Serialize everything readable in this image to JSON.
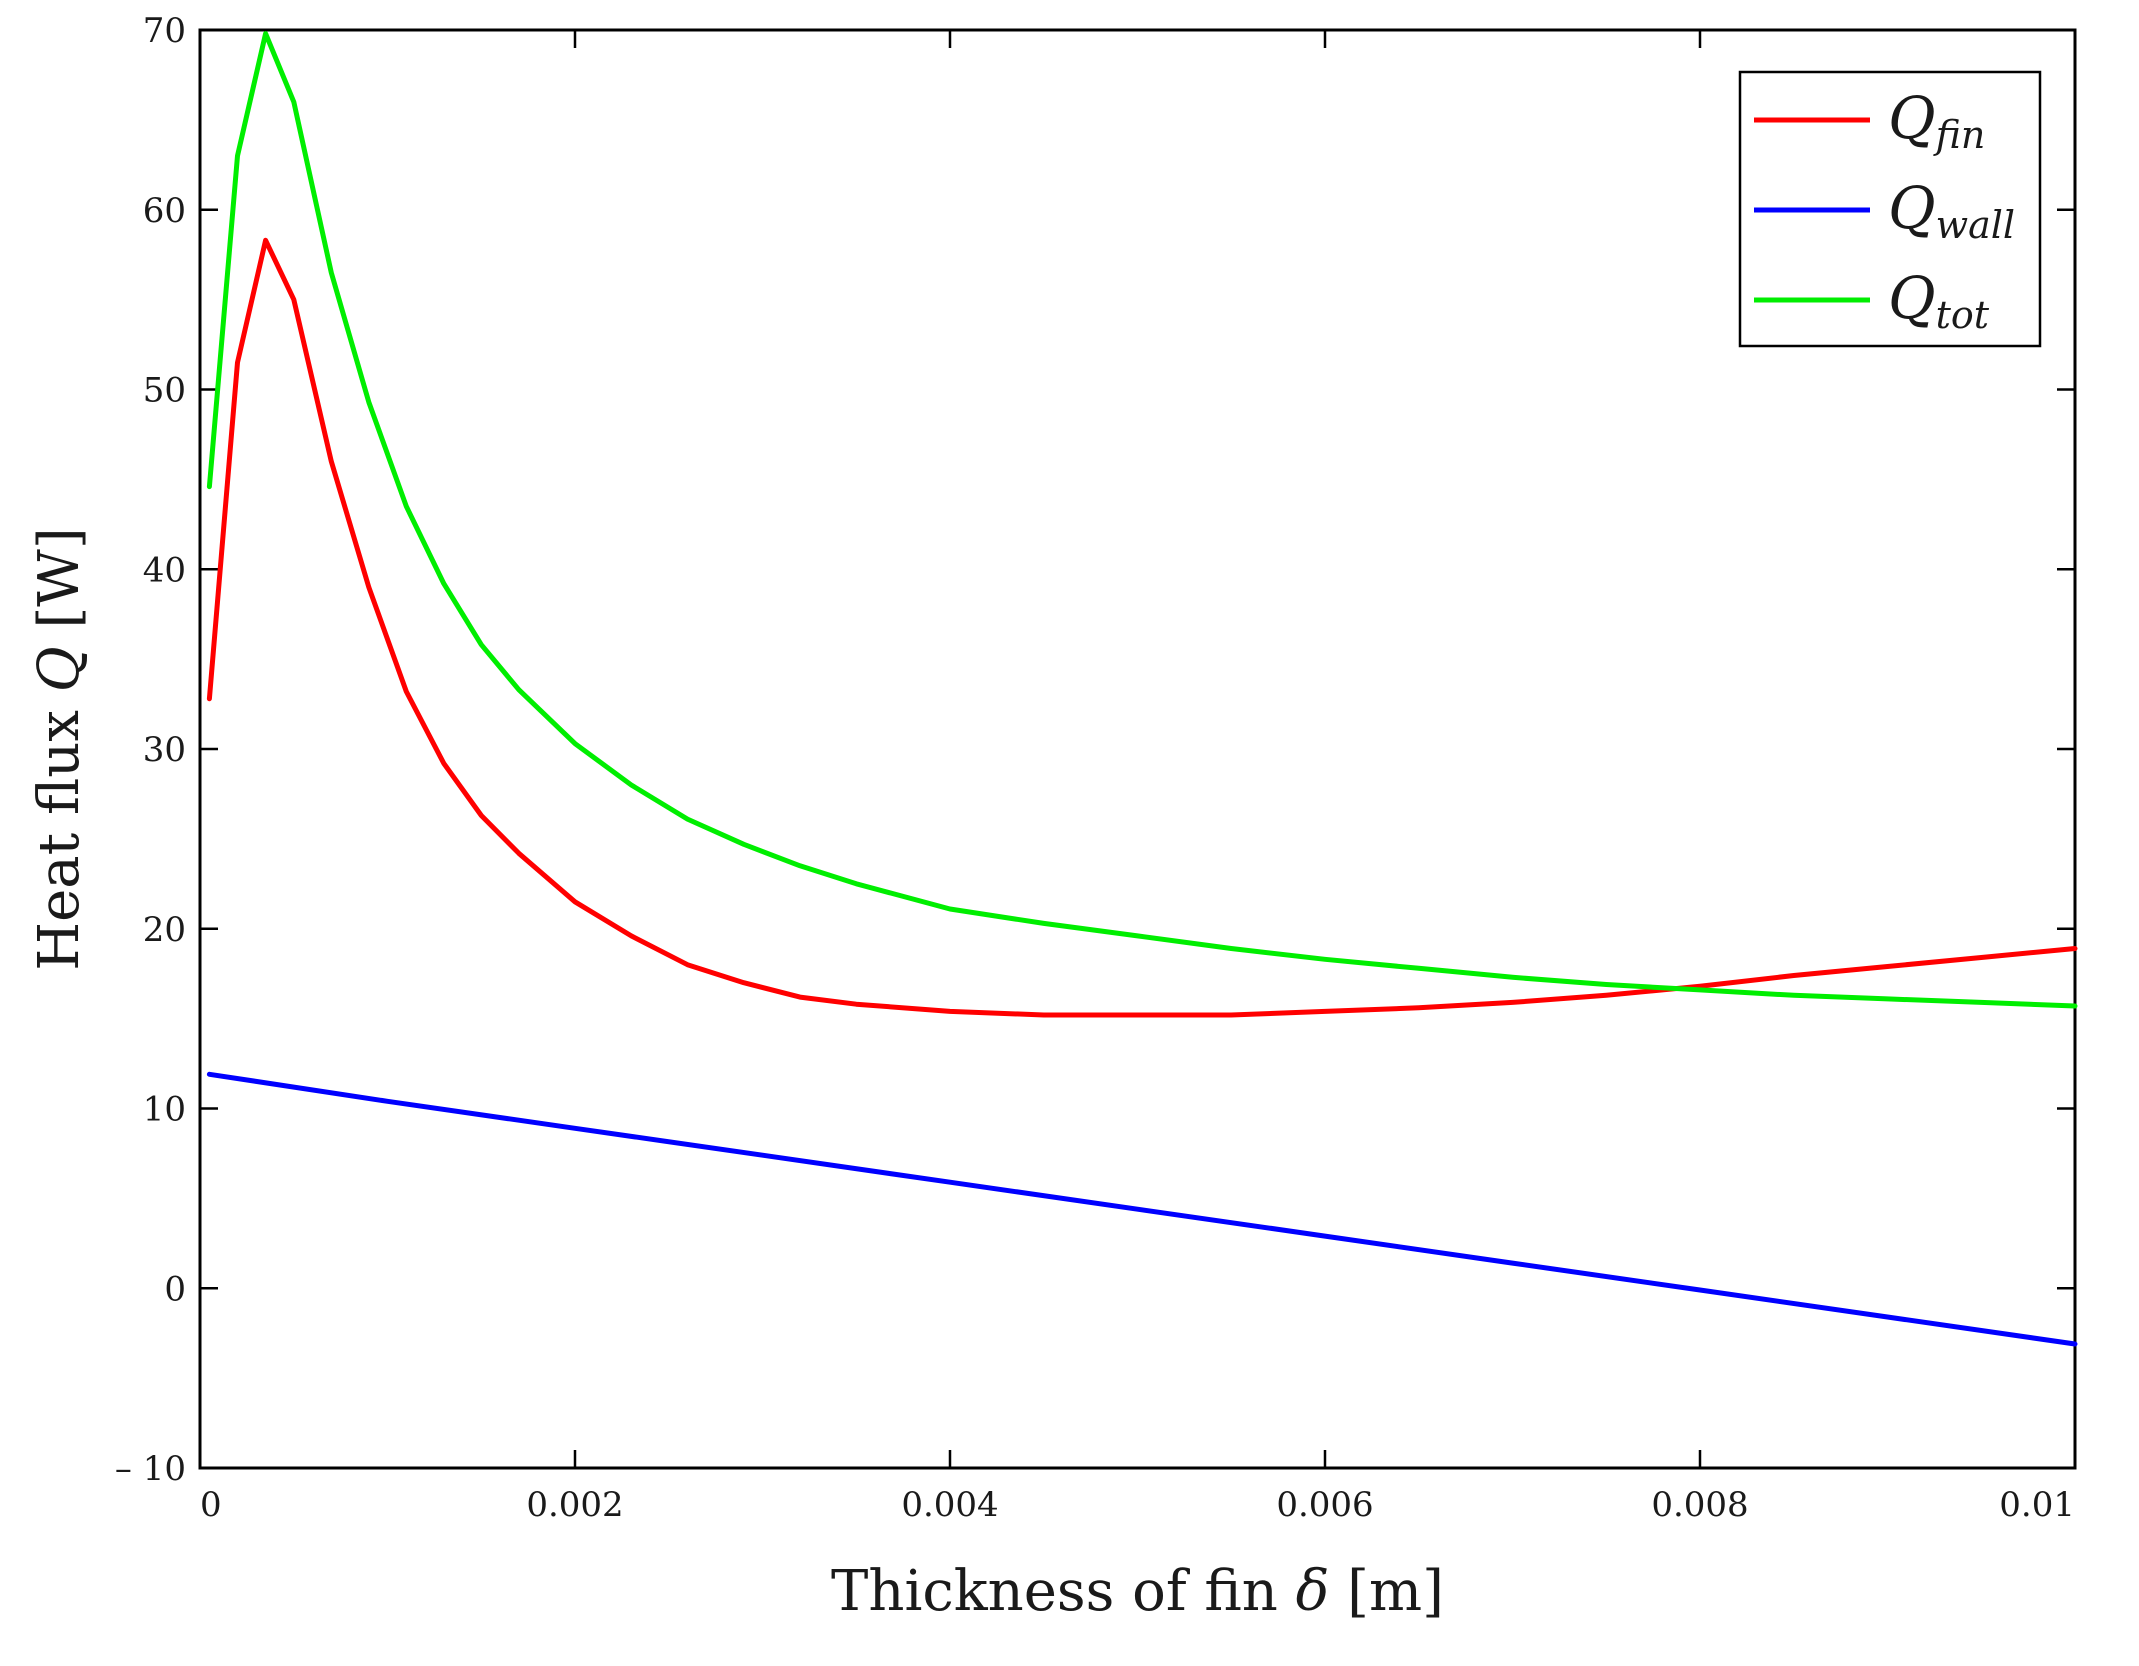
{
  "chart_data": {
    "type": "line",
    "title": "",
    "xlabel": {
      "prefix": "Thickness of fin ",
      "symbol": "δ",
      "suffix": " [m]"
    },
    "ylabel": {
      "prefix": "Heat flux ",
      "symbol": "Q",
      "suffix": " [W]"
    },
    "xlim": [
      0,
      0.01
    ],
    "ylim": [
      -10,
      70
    ],
    "x_ticks": [
      0,
      0.002,
      0.004,
      0.006,
      0.008,
      0.01
    ],
    "x_tick_labels": [
      "0",
      "0.002",
      "0.004",
      "0.006",
      "0.008",
      "0.01"
    ],
    "y_ticks": [
      -10,
      0,
      10,
      20,
      30,
      40,
      50,
      60,
      70
    ],
    "y_tick_labels": [
      "– 10",
      "0",
      "10",
      "20",
      "30",
      "40",
      "50",
      "60",
      "70"
    ],
    "grid": false,
    "legend_position": "top-right",
    "series": [
      {
        "name": "Q_fin",
        "legend_main": "Q",
        "legend_sub": "fin",
        "color": "#ff0000",
        "x": [
          5e-05,
          0.0002,
          0.00035,
          0.0005,
          0.0007,
          0.0009,
          0.0011,
          0.0013,
          0.0015,
          0.0017,
          0.002,
          0.0023,
          0.0026,
          0.0029,
          0.0032,
          0.0035,
          0.004,
          0.0045,
          0.005,
          0.0055,
          0.006,
          0.0065,
          0.007,
          0.0075,
          0.008,
          0.0085,
          0.009,
          0.0095,
          0.01
        ],
        "y": [
          32.8,
          51.5,
          58.3,
          55.0,
          46.0,
          39.0,
          33.2,
          29.2,
          26.3,
          24.2,
          21.5,
          19.6,
          18.0,
          17.0,
          16.2,
          15.8,
          15.4,
          15.2,
          15.2,
          15.2,
          15.4,
          15.6,
          15.9,
          16.3,
          16.8,
          17.4,
          17.9,
          18.4,
          18.9
        ]
      },
      {
        "name": "Q_wall",
        "legend_main": "Q",
        "legend_sub": "wall",
        "color": "#0000ff",
        "x": [
          5e-05,
          0.001,
          0.002,
          0.003,
          0.004,
          0.005,
          0.006,
          0.007,
          0.008,
          0.009,
          0.01
        ],
        "y": [
          11.9,
          10.4,
          8.9,
          7.4,
          5.9,
          4.4,
          2.9,
          1.4,
          -0.1,
          -1.6,
          -3.1
        ]
      },
      {
        "name": "Q_tot",
        "legend_main": "Q",
        "legend_sub": "tot",
        "color": "#00ee00",
        "x": [
          5e-05,
          0.0002,
          0.00035,
          0.0005,
          0.0007,
          0.0009,
          0.0011,
          0.0013,
          0.0015,
          0.0017,
          0.002,
          0.0023,
          0.0026,
          0.0029,
          0.0032,
          0.0035,
          0.004,
          0.0045,
          0.005,
          0.0055,
          0.006,
          0.0065,
          0.007,
          0.0075,
          0.008,
          0.0085,
          0.009,
          0.0095,
          0.01
        ],
        "y": [
          44.6,
          63.0,
          69.8,
          66.0,
          56.5,
          49.3,
          43.5,
          39.2,
          35.8,
          33.3,
          30.3,
          28.0,
          26.1,
          24.7,
          23.5,
          22.5,
          21.1,
          20.3,
          19.6,
          18.9,
          18.3,
          17.8,
          17.3,
          16.9,
          16.6,
          16.3,
          16.1,
          15.9,
          15.7
        ]
      }
    ]
  }
}
